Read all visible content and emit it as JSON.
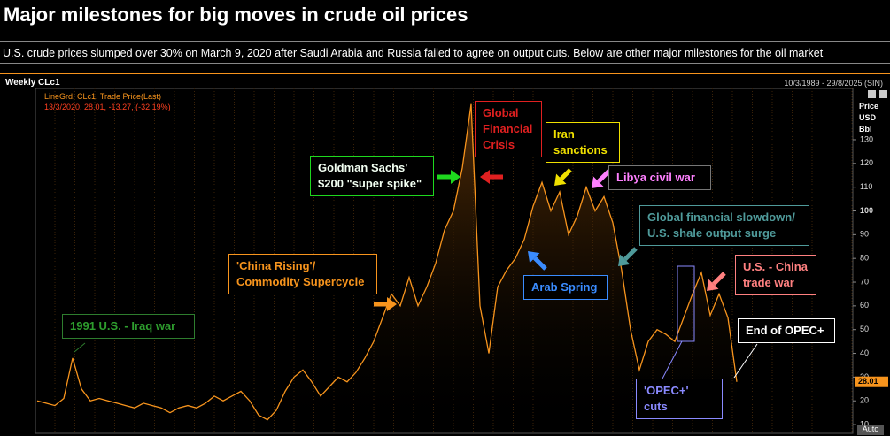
{
  "header": {
    "title": "Major milestones for big moves in crude oil prices",
    "subtitle": "U.S. crude prices slumped over 30% on March 9, 2020 after Saudi Arabia and Russia failed to agree on output cuts. Below are other major milestones for the oil market"
  },
  "chart_data": {
    "type": "line",
    "panel": {
      "name": "Weekly CLc1",
      "range": "10/3/1989 - 29/8/2025 (SIN)",
      "legend_title": "LineGrd, CLc1, Trade Price(Last)",
      "legend_value": "13/3/2020, 28.01, -13.27, (-32.19%)",
      "auto": "Auto"
    },
    "ylabel": "Price USD Bbl",
    "series": [
      {
        "name": "CLc1",
        "color": "#f7941d",
        "values": [
          20,
          19,
          18,
          21,
          38,
          25,
          20,
          21,
          20,
          19,
          18,
          17,
          19,
          18,
          17,
          15,
          17,
          18,
          17,
          19,
          22,
          20,
          22,
          24,
          20,
          14,
          12,
          16,
          24,
          30,
          33,
          28,
          22,
          26,
          30,
          28,
          32,
          38,
          45,
          55,
          65,
          60,
          72,
          60,
          68,
          78,
          92,
          100,
          118,
          145,
          60,
          40,
          68,
          75,
          80,
          88,
          102,
          112,
          100,
          108,
          90,
          98,
          110,
          100,
          106,
          95,
          75,
          50,
          33,
          45,
          50,
          48,
          45,
          55,
          65,
          74,
          56,
          65,
          55,
          28.01
        ]
      }
    ],
    "ylim": [
      6.3,
      151.6
    ],
    "yticks": [
      10,
      20,
      30,
      40,
      50,
      60,
      70,
      80,
      90,
      100,
      110,
      120,
      130
    ],
    "annotations": [
      {
        "text": "1991 U.S. - Iraq war",
        "color": "#2e9e2e"
      },
      {
        "text": "'China Rising'/ Commodity Supercycle",
        "color": "#f7941d"
      },
      {
        "text": "Goldman Sachs' $200 \"super spike\"",
        "color": "#1ed81e"
      },
      {
        "text": "Global Financial Crisis",
        "color": "#e02020"
      },
      {
        "text": "Iran sanctions",
        "color": "#f0e000"
      },
      {
        "text": "Libya civil war",
        "color": "#ff80ff"
      },
      {
        "text": "Global financial slowdown/ U.S. shale output surge",
        "color": "#4f9a9a"
      },
      {
        "text": "Arab Spring",
        "color": "#3a8cff"
      },
      {
        "text": "U.S. - China trade war",
        "color": "#ff8080"
      },
      {
        "text": "End of OPEC+",
        "color": "#ffffff"
      },
      {
        "text": "'OPEC+' cuts",
        "color": "#8a8aff"
      }
    ]
  }
}
